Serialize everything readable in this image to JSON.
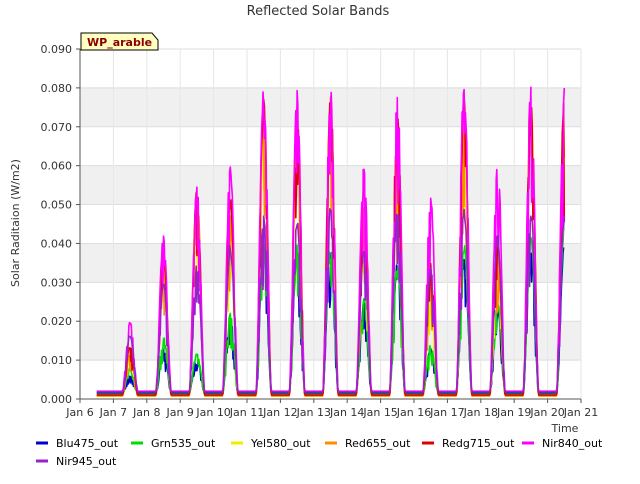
{
  "chart_data": {
    "type": "line",
    "title": "Reflected Solar Bands",
    "xlabel": "Time",
    "ylabel": "Solar Raditaion (W/m2)",
    "site_label": "WP_arable",
    "xlim": [
      6,
      21
    ],
    "ylim": [
      0.0,
      0.09
    ],
    "x_ticks": [
      6,
      7,
      8,
      9,
      10,
      11,
      12,
      13,
      14,
      15,
      16,
      17,
      18,
      19,
      20,
      21
    ],
    "x_tick_labels": [
      "Jan 6",
      "Jan 7",
      "Jan 8",
      "Jan 9",
      "Jan 10",
      "Jan 11",
      "Jan 12",
      "Jan 13",
      "Jan 14",
      "Jan 15",
      "Jan 16",
      "Jan 17",
      "Jan 18",
      "Jan 19",
      "Jan 20",
      "Jan 21"
    ],
    "y_ticks": [
      0.0,
      0.01,
      0.02,
      0.03,
      0.04,
      0.05,
      0.06,
      0.07,
      0.08,
      0.09
    ],
    "y_tick_labels": [
      "0.000",
      "0.010",
      "0.020",
      "0.030",
      "0.040",
      "0.050",
      "0.060",
      "0.070",
      "0.080",
      "0.090"
    ],
    "grid": true,
    "alternating_bands": true,
    "legend_position": "bottom",
    "days": [
      7,
      8,
      9,
      10,
      11,
      12,
      13,
      14,
      15,
      16,
      17,
      18,
      19,
      20
    ],
    "series": [
      {
        "name": "Blu475_out",
        "color": "#0000cc",
        "night": 0.0015,
        "peaks": [
          0.006,
          0.013,
          0.011,
          0.021,
          0.04,
          0.038,
          0.039,
          0.025,
          0.035,
          0.013,
          0.036,
          0.024,
          0.04,
          0.04
        ]
      },
      {
        "name": "Grn535_out",
        "color": "#00dd00",
        "night": 0.0012,
        "peaks": [
          0.008,
          0.016,
          0.012,
          0.022,
          0.045,
          0.04,
          0.042,
          0.026,
          0.036,
          0.014,
          0.04,
          0.026,
          0.043,
          0.045
        ]
      },
      {
        "name": "Yel580_out",
        "color": "#eeee00",
        "night": 0.0008,
        "peaks": [
          0.011,
          0.036,
          0.056,
          0.045,
          0.072,
          0.07,
          0.074,
          0.045,
          0.062,
          0.03,
          0.072,
          0.037,
          0.074,
          0.076
        ]
      },
      {
        "name": "Red655_out",
        "color": "#ff8c00",
        "night": 0.0008,
        "peaks": [
          0.012,
          0.037,
          0.054,
          0.048,
          0.076,
          0.072,
          0.078,
          0.05,
          0.072,
          0.033,
          0.075,
          0.04,
          0.076,
          0.078
        ]
      },
      {
        "name": "Redg715_out",
        "color": "#dd0000",
        "night": 0.001,
        "peaks": [
          0.014,
          0.038,
          0.055,
          0.052,
          0.078,
          0.076,
          0.08,
          0.055,
          0.076,
          0.035,
          0.078,
          0.042,
          0.078,
          0.079
        ]
      },
      {
        "name": "Nir840_out",
        "color": "#ff00ff",
        "night": 0.002,
        "peaks": [
          0.02,
          0.043,
          0.055,
          0.061,
          0.081,
          0.081,
          0.081,
          0.06,
          0.08,
          0.053,
          0.085,
          0.064,
          0.084,
          0.08
        ]
      },
      {
        "name": "Nir945_out",
        "color": "#9922cc",
        "night": 0.0018,
        "peaks": [
          0.017,
          0.03,
          0.035,
          0.04,
          0.049,
          0.047,
          0.05,
          0.04,
          0.051,
          0.034,
          0.05,
          0.043,
          0.049,
          0.048
        ]
      }
    ]
  }
}
